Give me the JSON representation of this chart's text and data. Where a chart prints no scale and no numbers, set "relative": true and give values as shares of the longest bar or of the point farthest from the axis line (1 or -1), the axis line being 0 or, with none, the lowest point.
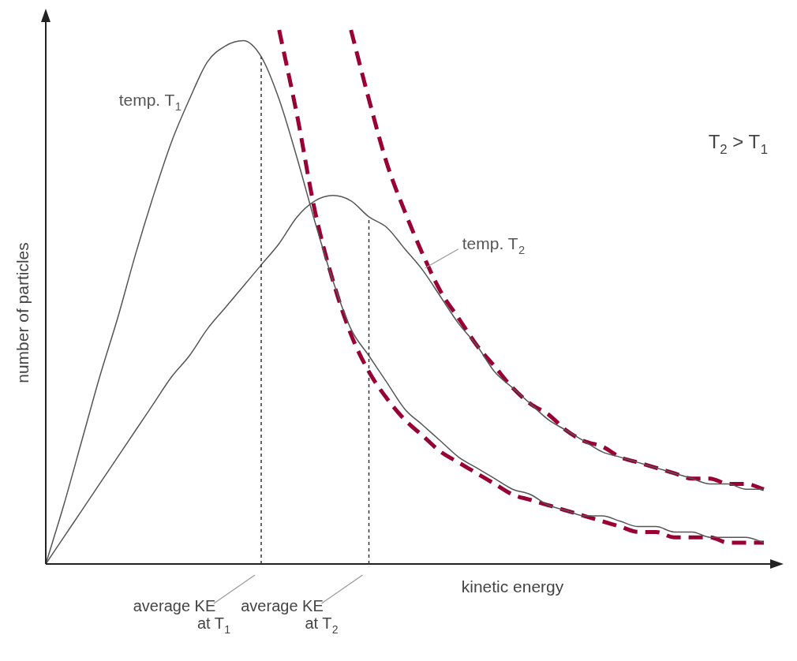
{
  "chart_data": {
    "type": "line",
    "relative": true,
    "xlabel": "kinetic energy",
    "ylabel": "number of particles",
    "categories": [
      null,
      null,
      null,
      null,
      null,
      null,
      null,
      null,
      null,
      null,
      null,
      null,
      null,
      null,
      null,
      null,
      null,
      null,
      null,
      null,
      null,
      null,
      null,
      null,
      null,
      null,
      null,
      null,
      null,
      null,
      null,
      null,
      null,
      null,
      null,
      null,
      null,
      null,
      null,
      null,
      null
    ],
    "series": [
      {
        "name": "temp. T$_{1}$",
        "color": "#555555",
        "values": [
          0,
          0.11,
          0.23,
          0.35,
          0.46,
          0.58,
          0.69,
          0.79,
          0.87,
          0.94,
          0.97,
          0.98,
          0.95,
          0.87,
          0.76,
          0.64,
          0.53,
          0.44,
          0.39,
          0.34,
          0.29,
          0.26,
          0.23,
          0.2,
          0.18,
          0.16,
          0.14,
          0.13,
          0.11,
          0.1,
          0.09,
          0.09,
          0.08,
          0.07,
          0.07,
          0.06,
          0.06,
          0.05,
          0.05,
          0.05,
          0.04
        ]
      },
      {
        "name": "temp. T$_{2}$",
        "color": "#555555",
        "values": [
          0,
          0.05,
          0.1,
          0.15,
          0.2,
          0.25,
          0.3,
          0.35,
          0.39,
          0.44,
          0.48,
          0.52,
          0.56,
          0.6,
          0.65,
          0.68,
          0.69,
          0.68,
          0.65,
          0.63,
          0.59,
          0.55,
          0.5,
          0.45,
          0.41,
          0.36,
          0.33,
          0.3,
          0.27,
          0.25,
          0.23,
          0.21,
          0.2,
          0.19,
          0.18,
          0.17,
          0.16,
          0.15,
          0.15,
          0.14,
          0.14
        ]
      },
      {
        "color": "#990033",
        "line_style": "dashed",
        "values": [
          null,
          null,
          null,
          null,
          null,
          null,
          null,
          null,
          null,
          null,
          null,
          null,
          null,
          1,
          0.84,
          0.66,
          0.53,
          0.43,
          0.36,
          0.31,
          0.27,
          0.24,
          0.21,
          0.19,
          0.17,
          0.15,
          0.13,
          0.12,
          0.11,
          0.1,
          0.09,
          0.08,
          0.07,
          0.06,
          0.06,
          0.05,
          0.05,
          0.05,
          0.04,
          0.04,
          0.04
        ]
      },
      {
        "color": "#990033",
        "line_style": "dashed",
        "values": [
          null,
          null,
          null,
          null,
          null,
          null,
          null,
          null,
          null,
          null,
          null,
          null,
          null,
          null,
          null,
          null,
          null,
          1,
          0.87,
          0.75,
          0.66,
          0.58,
          0.51,
          0.46,
          0.41,
          0.37,
          0.33,
          0.3,
          0.28,
          0.25,
          0.23,
          0.22,
          0.2,
          0.19,
          0.18,
          0.17,
          0.16,
          0.16,
          0.15,
          0.15,
          0.14
        ]
      }
    ],
    "annotations": [
      "average KE at T$_{1}$",
      "average KE at T$_{2}$",
      "T$_{2}$ > T$_{1}$"
    ],
    "marker": "none",
    "line_style": "solid"
  }
}
